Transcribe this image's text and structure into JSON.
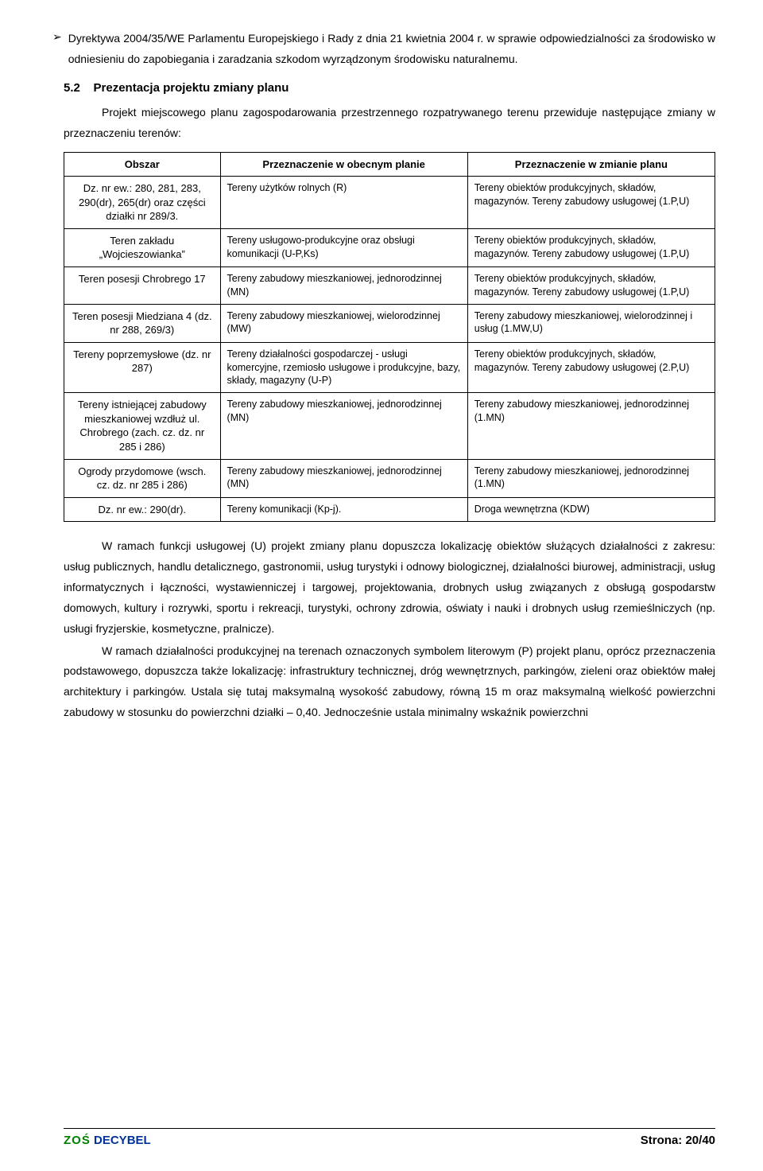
{
  "bullet": {
    "marker": "➢",
    "text": "Dyrektywa 2004/35/WE Parlamentu Europejskiego i Rady z dnia 21 kwietnia 2004 r. w sprawie odpowiedzialności za środowisko w odniesieniu do zapobiegania i zaradzania szkodom wyrządzonym środowisku naturalnemu."
  },
  "section": {
    "number": "5.2",
    "title": "Prezentacja projektu zmiany planu",
    "intro": "Projekt miejscowego planu zagospodarowania przestrzennego rozpatrywanego terenu przewiduje następujące zmiany w przeznaczeniu terenów:"
  },
  "table": {
    "col_widths": [
      "24%",
      "38%",
      "38%"
    ],
    "headers": [
      "Obszar",
      "Przeznaczenie w obecnym planie",
      "Przeznaczenie w zmianie planu"
    ],
    "rows": [
      {
        "area": "Dz. nr ew.: 280, 281, 283, 290(dr), 265(dr) oraz części działki nr 289/3.",
        "current": "Tereny użytków rolnych (R)",
        "change": "Tereny obiektów produkcyjnych, składów, magazynów. Tereny zabudowy usługowej (1.P,U)"
      },
      {
        "area": "Teren zakładu „Wojcieszowianka”",
        "current": "Tereny usługowo-produkcyjne oraz obsługi komunikacji (U-P,Ks)",
        "change": "Tereny obiektów produkcyjnych, składów, magazynów. Tereny zabudowy usługowej (1.P,U)"
      },
      {
        "area": "Teren posesji Chrobrego 17",
        "current": "Tereny zabudowy mieszkaniowej, jednorodzinnej (MN)",
        "change": "Tereny obiektów produkcyjnych, składów, magazynów. Tereny zabudowy usługowej (1.P,U)"
      },
      {
        "area": "Teren posesji Miedziana 4 (dz. nr 288, 269/3)",
        "current": "Tereny zabudowy mieszkaniowej, wielorodzinnej (MW)",
        "change": "Tereny zabudowy mieszkaniowej, wielorodzinnej i usług (1.MW,U)"
      },
      {
        "area": "Tereny poprzemysłowe (dz. nr 287)",
        "current": "Tereny działalności gospodarczej - usługi komercyjne, rzemiosło usługowe i produkcyjne, bazy, składy, magazyny (U-P)",
        "change": "Tereny obiektów produkcyjnych, składów, magazynów. Tereny zabudowy usługowej (2.P,U)"
      },
      {
        "area": "Tereny istniejącej zabudowy mieszkaniowej wzdłuż ul. Chrobrego (zach. cz. dz. nr 285 i 286)",
        "current": "Tereny zabudowy mieszkaniowej, jednorodzinnej (MN)",
        "change": "Tereny zabudowy mieszkaniowej, jednorodzinnej (1.MN)"
      },
      {
        "area": "Ogrody przydomowe (wsch. cz. dz. nr 285 i 286)",
        "current": "Tereny zabudowy mieszkaniowej, jednorodzinnej (MN)",
        "change": "Tereny zabudowy mieszkaniowej, jednorodzinnej (1.MN)"
      },
      {
        "area": "Dz. nr ew.: 290(dr).",
        "current": "Tereny komunikacji (Kp-j).",
        "change": "Droga wewnętrzna (KDW)"
      }
    ]
  },
  "paragraphs": [
    "W ramach funkcji usługowej (U) projekt zmiany planu dopuszcza lokalizację obiektów służących działalności z zakresu: usług publicznych, handlu detalicznego, gastronomii, usług turystyki i odnowy biologicznej, działalności biurowej, administracji, usług informatycznych i łączności, wystawienniczej i targowej, projektowania, drobnych usług związanych z obsługą gospodarstw domowych, kultury i rozrywki, sportu i rekreacji, turystyki, ochrony zdrowia, oświaty i nauki i drobnych usług rzemieślniczych (np. usługi fryzjerskie, kosmetyczne, pralnicze).",
    "W ramach działalności produkcyjnej na terenach oznaczonych symbolem literowym (P) projekt planu, oprócz przeznaczenia podstawowego, dopuszcza także lokalizację: infrastruktury technicznej, dróg wewnętrznych, parkingów, zieleni oraz obiektów małej architektury i parkingów. Ustala się tutaj maksymalną wysokość zabudowy, równą 15 m oraz maksymalną wielkość powierzchni zabudowy w stosunku do powierzchni działki – 0,40. Jednocześnie ustala minimalny wskaźnik powierzchni"
  ],
  "footer": {
    "brand_zos": "ZOŚ",
    "brand_decybel": "DECYBEL",
    "page_label": "Strona:",
    "page_current": "20",
    "page_sep": "/",
    "page_total": "40"
  },
  "colors": {
    "text": "#000000",
    "brand_green": "#008000",
    "brand_blue": "#003399",
    "background": "#ffffff",
    "border": "#000000"
  }
}
